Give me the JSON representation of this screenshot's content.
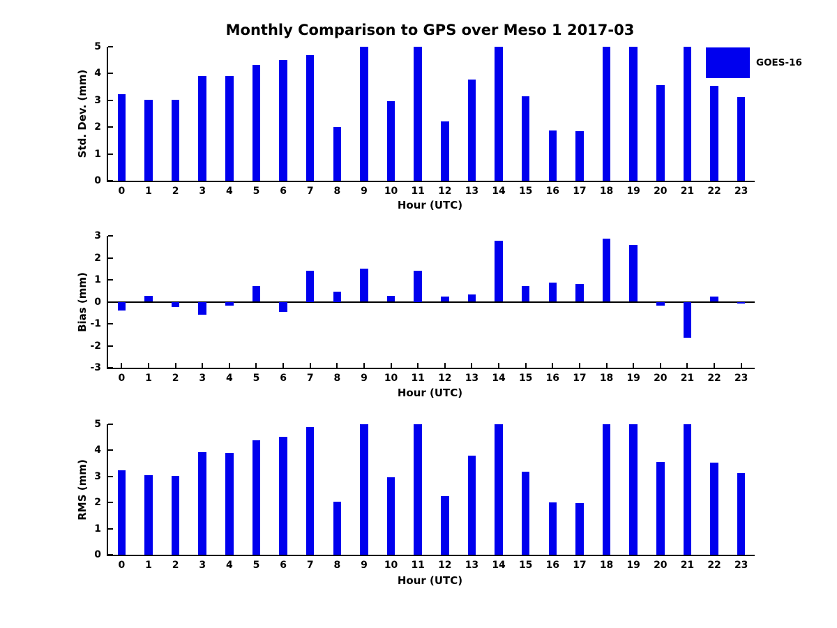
{
  "figure_title": "Monthly Comparison to GPS over Meso 1 2017-03",
  "legend": {
    "label": "GOES-16",
    "swatch_color": "#0000EE"
  },
  "colors": {
    "bar": "#0000EE",
    "axis": "#000000",
    "background": "#FFFFFF",
    "text": "#000000"
  },
  "chart_data": [
    {
      "id": "std-dev",
      "type": "bar",
      "title": "Monthly Comparison to GPS over Meso 1 2017-03",
      "ylabel": "Std. Dev. (mm)",
      "xlabel": "Hour (UTC)",
      "legend": [
        "GOES-16"
      ],
      "categories": [
        "0",
        "1",
        "2",
        "3",
        "4",
        "5",
        "6",
        "7",
        "8",
        "9",
        "10",
        "11",
        "12",
        "13",
        "14",
        "15",
        "16",
        "17",
        "18",
        "19",
        "20",
        "21",
        "22",
        "23"
      ],
      "values": [
        3.22,
        3.03,
        3.03,
        3.9,
        3.92,
        4.32,
        4.5,
        4.68,
        2.0,
        5.0,
        2.97,
        5.0,
        2.22,
        3.79,
        5.0,
        3.15,
        1.88,
        1.84,
        5.0,
        5.0,
        3.58,
        5.0,
        3.53,
        3.13
      ],
      "ylim": [
        0,
        5
      ],
      "yticks": [
        0,
        1,
        2,
        3,
        4,
        5
      ],
      "grid": false,
      "bar_color": "#0000EE"
    },
    {
      "id": "bias",
      "type": "bar",
      "title": "",
      "ylabel": "Bias (mm)",
      "xlabel": "Hour (UTC)",
      "legend": [
        "GOES-16"
      ],
      "categories": [
        "0",
        "1",
        "2",
        "3",
        "4",
        "5",
        "6",
        "7",
        "8",
        "9",
        "10",
        "11",
        "12",
        "13",
        "14",
        "15",
        "16",
        "17",
        "18",
        "19",
        "20",
        "21",
        "22",
        "23"
      ],
      "values": [
        -0.4,
        0.28,
        -0.25,
        -0.57,
        -0.16,
        0.72,
        -0.45,
        1.43,
        0.46,
        1.52,
        0.26,
        1.43,
        0.23,
        0.33,
        2.79,
        0.71,
        0.86,
        0.8,
        2.88,
        2.58,
        -0.18,
        -1.62,
        0.25,
        -0.07
      ],
      "ylim": [
        -3,
        3
      ],
      "yticks": [
        -3,
        -2,
        -1,
        0,
        1,
        2,
        3
      ],
      "grid": false,
      "bar_color": "#0000EE"
    },
    {
      "id": "rms",
      "type": "bar",
      "title": "",
      "ylabel": "RMS (mm)",
      "xlabel": "Hour (UTC)",
      "legend": [
        "GOES-16"
      ],
      "categories": [
        "0",
        "1",
        "2",
        "3",
        "4",
        "5",
        "6",
        "7",
        "8",
        "9",
        "10",
        "11",
        "12",
        "13",
        "14",
        "15",
        "16",
        "17",
        "18",
        "19",
        "20",
        "21",
        "22",
        "23"
      ],
      "values": [
        3.23,
        3.04,
        3.01,
        3.93,
        3.9,
        4.38,
        4.51,
        4.9,
        2.03,
        5.0,
        2.96,
        5.0,
        2.24,
        3.8,
        5.0,
        3.19,
        2.02,
        1.99,
        5.0,
        5.0,
        3.56,
        5.0,
        3.54,
        3.13
      ],
      "ylim": [
        0,
        5
      ],
      "yticks": [
        0,
        1,
        2,
        3,
        4,
        5
      ],
      "grid": false,
      "bar_color": "#0000EE"
    }
  ]
}
